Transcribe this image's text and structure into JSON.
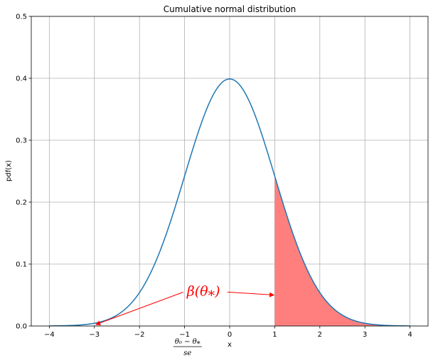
{
  "chart_data": {
    "type": "line",
    "title": "Cumulative normal distribution",
    "xlabel": "x",
    "ylabel": "pdf(x)",
    "xlim": [
      -4.4,
      4.4
    ],
    "ylim": [
      0,
      0.5
    ],
    "xticks": [
      -4,
      -3,
      -2,
      -1,
      0,
      1,
      2,
      3,
      4
    ],
    "xtick_labels": [
      "−4",
      "−3",
      "−2",
      "−1",
      "0",
      "1",
      "2",
      "3",
      "4"
    ],
    "yticks": [
      0.0,
      0.1,
      0.2,
      0.3,
      0.4,
      0.5
    ],
    "ytick_labels": [
      "0.0",
      "0.1",
      "0.2",
      "0.3",
      "0.4",
      "0.5"
    ],
    "grid": true,
    "series": [
      {
        "function": "standard normal pdf",
        "x_range": [
          -4,
          4
        ],
        "color": "#1f77b4",
        "sample_points": [
          {
            "x": -4,
            "y": 0.0001
          },
          {
            "x": -3,
            "y": 0.0044
          },
          {
            "x": -2,
            "y": 0.054
          },
          {
            "x": -1,
            "y": 0.242
          },
          {
            "x": 0,
            "y": 0.399
          },
          {
            "x": 1,
            "y": 0.242
          },
          {
            "x": 2,
            "y": 0.054
          },
          {
            "x": 3,
            "y": 0.0044
          },
          {
            "x": 4,
            "y": 0.0001
          }
        ]
      }
    ],
    "shaded_region": {
      "x_from": 1,
      "x_to": 4,
      "color": "#ff7f7f"
    },
    "annotation": {
      "text": "β(θ⁎)",
      "color": "#ff0000",
      "text_at": {
        "x": -0.95,
        "y": 0.057
      },
      "arrows_to": [
        {
          "x": -3,
          "y": 0.0
        },
        {
          "x": 1,
          "y": 0.05
        }
      ]
    },
    "tick_annotation": {
      "x": -3,
      "numerator": "θ₀ − θ⁎",
      "denominator": "se"
    }
  }
}
